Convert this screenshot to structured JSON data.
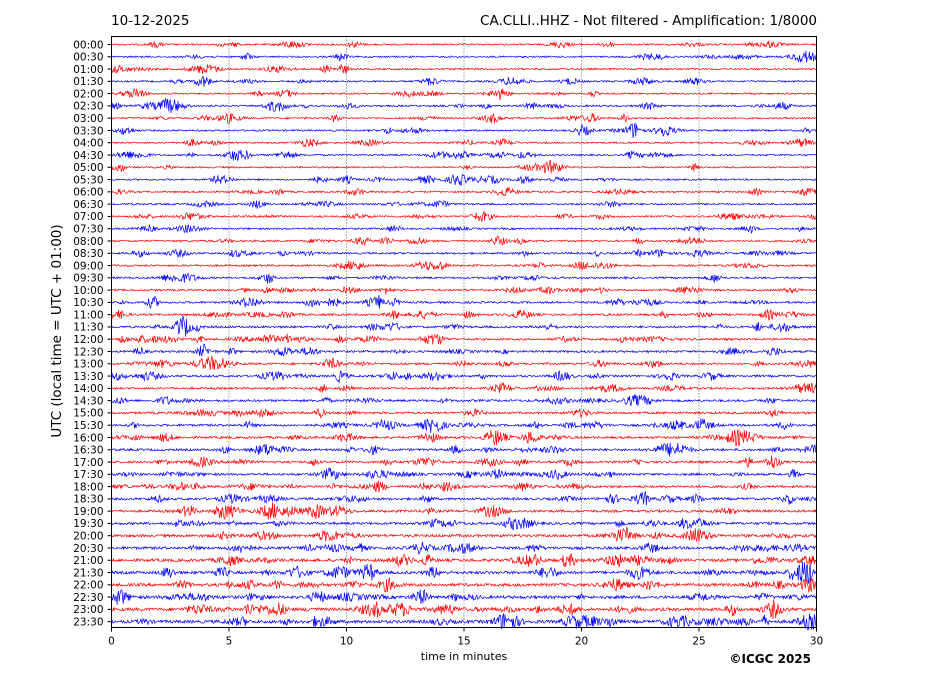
{
  "header": {
    "date": "10-12-2025",
    "station": "CA.CLLI..HHZ - Not filtered - Amplification: 1/8000"
  },
  "footer": {
    "copyright": "©ICGC 2025"
  },
  "chart_data": {
    "type": "line",
    "title": "CA.CLLI..HHZ - Not filtered - Amplification: 1/8000",
    "xlabel": "time in minutes",
    "ylabel": "UTC (local time = UTC + 01:00)",
    "xlim": [
      0,
      30
    ],
    "x_ticks": [
      0,
      5,
      10,
      15,
      20,
      25,
      30
    ],
    "grid": "vertical dotted at x ticks",
    "trace_colors": [
      "#ff0000",
      "#0000ff"
    ],
    "rows": [
      "00:00",
      "00:30",
      "01:00",
      "01:30",
      "02:00",
      "02:30",
      "03:00",
      "03:30",
      "04:00",
      "04:30",
      "05:00",
      "05:30",
      "06:00",
      "06:30",
      "07:00",
      "07:30",
      "08:00",
      "08:30",
      "09:00",
      "09:30",
      "10:00",
      "10:30",
      "11:00",
      "11:30",
      "12:00",
      "12:30",
      "13:00",
      "13:30",
      "14:00",
      "14:30",
      "15:00",
      "15:30",
      "16:00",
      "16:30",
      "17:00",
      "17:30",
      "18:00",
      "18:30",
      "19:00",
      "19:30",
      "20:00",
      "20:30",
      "21:00",
      "21:30",
      "22:00",
      "22:30",
      "23:00",
      "23:30"
    ],
    "row_noise_level": [
      0.25,
      0.25,
      0.25,
      0.25,
      0.25,
      0.3,
      0.3,
      0.3,
      0.25,
      0.25,
      0.25,
      0.25,
      0.3,
      0.3,
      0.3,
      0.3,
      0.35,
      0.35,
      0.35,
      0.35,
      0.4,
      0.4,
      0.4,
      0.45,
      0.45,
      0.45,
      0.45,
      0.45,
      0.45,
      0.5,
      0.5,
      0.5,
      0.5,
      0.5,
      0.5,
      0.5,
      0.55,
      0.55,
      0.6,
      0.6,
      0.7,
      0.7,
      0.75,
      0.75,
      0.8,
      0.8,
      0.85,
      0.85
    ]
  }
}
